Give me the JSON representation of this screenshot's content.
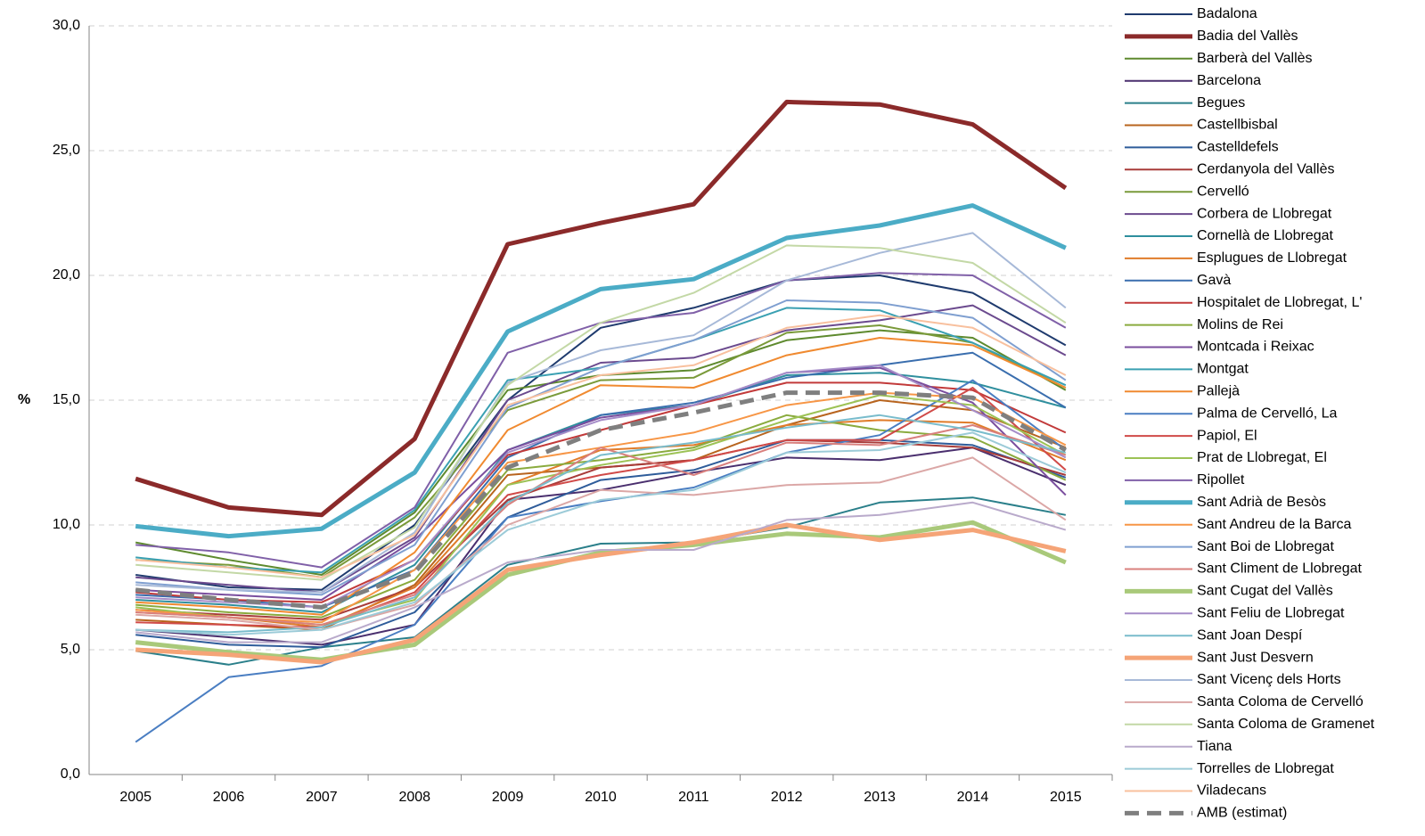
{
  "chart_data": {
    "type": "line",
    "y_label": "%",
    "categories": [
      "2005",
      "2006",
      "2007",
      "2008",
      "2009",
      "2010",
      "2011",
      "2012",
      "2013",
      "2014",
      "2015"
    ],
    "ylim": [
      0,
      30
    ],
    "yticks": [
      {
        "value": 0,
        "label": "0,0"
      },
      {
        "value": 5,
        "label": "5,0"
      },
      {
        "value": 10,
        "label": "10,0"
      },
      {
        "value": 15,
        "label": "15,0"
      },
      {
        "value": 20,
        "label": "20,0"
      },
      {
        "value": 25,
        "label": "25,0"
      },
      {
        "value": 30,
        "label": "30,0"
      }
    ],
    "grid": true,
    "legend": "right",
    "series": [
      {
        "name": "Badalona",
        "color": "#1f3b6e",
        "values": [
          8.0,
          7.5,
          7.4,
          10.0,
          15.0,
          17.9,
          18.7,
          19.8,
          20.0,
          19.3,
          17.2
        ]
      },
      {
        "name": "Badia del Vallès",
        "color": "#8b2a2a",
        "line_width": 5,
        "values": [
          11.85,
          10.7,
          10.4,
          13.45,
          21.25,
          22.1,
          22.85,
          26.95,
          26.85,
          26.05,
          23.5
        ]
      },
      {
        "name": "Barberà del Vallès",
        "color": "#5e8a2e",
        "values": [
          9.3,
          8.6,
          8.0,
          10.5,
          15.4,
          16.0,
          16.2,
          17.4,
          17.8,
          17.5,
          15.4
        ]
      },
      {
        "name": "Barcelona",
        "color": "#4a2f6e",
        "values": [
          5.8,
          5.5,
          5.2,
          6.0,
          11.0,
          11.4,
          12.1,
          12.7,
          12.6,
          13.1,
          11.6
        ]
      },
      {
        "name": "Begues",
        "color": "#2a7f8a",
        "values": [
          4.95,
          4.4,
          5.1,
          5.5,
          8.4,
          9.25,
          9.3,
          9.9,
          10.9,
          11.1,
          10.4
        ]
      },
      {
        "name": "Castellbisbal",
        "color": "#b8641e",
        "values": [
          6.2,
          6.0,
          5.8,
          7.6,
          12.0,
          12.3,
          12.6,
          14.0,
          15.0,
          14.6,
          13.1
        ]
      },
      {
        "name": "Castelldefels",
        "color": "#2e5c9a",
        "values": [
          5.6,
          5.2,
          5.1,
          6.5,
          10.3,
          11.8,
          12.2,
          13.4,
          13.4,
          13.2,
          11.9
        ]
      },
      {
        "name": "Cerdanyola del Vallès",
        "color": "#a83c3a",
        "values": [
          6.6,
          6.4,
          6.2,
          7.5,
          11.0,
          12.3,
          12.6,
          13.4,
          13.3,
          13.1,
          12.0
        ]
      },
      {
        "name": "Cervelló",
        "color": "#7a9a3a",
        "values": [
          8.6,
          8.4,
          7.9,
          10.3,
          14.6,
          15.8,
          15.9,
          17.7,
          18.0,
          17.3,
          15.5
        ]
      },
      {
        "name": "Corbera de Llobregat",
        "color": "#6b4a8e",
        "values": [
          7.9,
          7.6,
          7.3,
          9.5,
          15.0,
          16.5,
          16.7,
          17.8,
          18.2,
          18.8,
          16.8
        ]
      },
      {
        "name": "Cornellà de Llobregat",
        "color": "#2f8f9e",
        "values": [
          7.0,
          6.8,
          6.5,
          8.4,
          13.0,
          14.4,
          14.8,
          16.0,
          16.1,
          15.7,
          14.7
        ]
      },
      {
        "name": "Esplugues de Llobregat",
        "color": "#e07c2a",
        "values": [
          6.5,
          6.3,
          5.9,
          7.5,
          11.6,
          13.0,
          13.2,
          14.0,
          14.2,
          14.1,
          12.6
        ]
      },
      {
        "name": "Gavà",
        "color": "#3a6eae",
        "values": [
          7.2,
          7.0,
          6.7,
          8.2,
          12.7,
          14.4,
          14.9,
          15.9,
          16.4,
          16.9,
          14.7
        ]
      },
      {
        "name": "Hospitalet de Llobregat, L'",
        "color": "#c23a3a",
        "values": [
          7.3,
          7.0,
          6.9,
          8.6,
          12.8,
          13.8,
          14.8,
          15.7,
          15.7,
          15.4,
          13.7
        ]
      },
      {
        "name": "Molins de Rei",
        "color": "#8aab3e",
        "values": [
          6.8,
          6.5,
          6.3,
          7.8,
          12.2,
          12.6,
          13.1,
          14.4,
          13.8,
          13.5,
          11.8
        ]
      },
      {
        "name": "Montcada i Reixac",
        "color": "#7a4e9e",
        "values": [
          7.4,
          7.2,
          7.0,
          9.4,
          13.0,
          14.3,
          14.8,
          16.1,
          16.3,
          14.9,
          11.2
        ]
      },
      {
        "name": "Montgat",
        "color": "#3aa0b2",
        "values": [
          8.7,
          8.3,
          8.1,
          10.6,
          15.8,
          16.3,
          17.4,
          18.7,
          18.6,
          17.3,
          15.6
        ]
      },
      {
        "name": "Pallejà",
        "color": "#f08a30",
        "values": [
          6.9,
          6.7,
          6.4,
          8.9,
          13.8,
          15.6,
          15.5,
          16.8,
          17.5,
          17.2,
          15.5
        ]
      },
      {
        "name": "Palma de Cervelló, La",
        "color": "#4a7ec2",
        "values": [
          1.3,
          3.9,
          4.35,
          6.0,
          10.3,
          10.95,
          11.5,
          12.9,
          13.6,
          15.8,
          13.0
        ]
      },
      {
        "name": "Papiol, El",
        "color": "#d04a48",
        "values": [
          6.1,
          6.0,
          5.9,
          7.3,
          11.2,
          12.0,
          12.6,
          13.4,
          13.4,
          15.5,
          12.2
        ]
      },
      {
        "name": "Prat de Llobregat, El",
        "color": "#9cc255",
        "values": [
          6.7,
          6.3,
          6.0,
          7.0,
          11.6,
          12.4,
          13.0,
          14.2,
          15.2,
          14.8,
          12.8
        ]
      },
      {
        "name": "Ripollet",
        "color": "#8060a8",
        "values": [
          9.2,
          8.9,
          8.3,
          10.7,
          16.9,
          18.1,
          18.5,
          19.8,
          20.1,
          20.0,
          17.9
        ]
      },
      {
        "name": "Sant Adrià de Besòs",
        "color": "#4bacc6",
        "line_width": 5,
        "values": [
          9.95,
          9.55,
          9.85,
          12.1,
          17.75,
          19.45,
          19.85,
          21.5,
          22.0,
          22.8,
          21.1
        ]
      },
      {
        "name": "Sant Andreu de la Barca",
        "color": "#f79646",
        "values": [
          6.6,
          6.3,
          6.1,
          8.2,
          12.5,
          13.1,
          13.7,
          14.8,
          15.3,
          15.1,
          13.2
        ]
      },
      {
        "name": "Sant Boi de Llobregat",
        "color": "#7f9fd0",
        "values": [
          7.7,
          7.4,
          7.2,
          9.2,
          14.7,
          16.3,
          17.4,
          19.0,
          18.9,
          18.3,
          15.8
        ]
      },
      {
        "name": "Sant Climent de Llobregat",
        "color": "#d9807e",
        "values": [
          6.5,
          6.3,
          6.0,
          7.2,
          10.8,
          13.1,
          12.0,
          13.3,
          13.2,
          14.0,
          12.8
        ]
      },
      {
        "name": "Sant Cugat del Vallès",
        "color": "#a9c97a",
        "line_width": 5,
        "values": [
          5.3,
          4.9,
          4.6,
          5.2,
          8.0,
          8.9,
          9.2,
          9.65,
          9.5,
          10.1,
          8.5
        ]
      },
      {
        "name": "Sant Feliu de Llobregat",
        "color": "#a58cc8",
        "values": [
          7.1,
          6.9,
          6.7,
          8.6,
          12.9,
          14.2,
          14.8,
          16.1,
          16.4,
          14.6,
          12.7
        ]
      },
      {
        "name": "Sant Joan Despí",
        "color": "#79bccc",
        "values": [
          5.8,
          5.7,
          5.9,
          7.1,
          10.9,
          12.8,
          13.3,
          13.9,
          14.4,
          13.8,
          12.9
        ]
      },
      {
        "name": "Sant Just Desvern",
        "color": "#f5a477",
        "line_width": 5,
        "values": [
          5.0,
          4.8,
          4.5,
          5.4,
          8.2,
          8.8,
          9.3,
          10.0,
          9.4,
          9.8,
          8.95
        ]
      },
      {
        "name": "Sant Vicenç dels Horts",
        "color": "#a7b9d8",
        "values": [
          7.6,
          7.4,
          7.3,
          9.7,
          15.7,
          17.0,
          17.6,
          19.8,
          20.9,
          21.7,
          18.7
        ]
      },
      {
        "name": "Santa Coloma de Cervelló",
        "color": "#dba7a6",
        "values": [
          6.4,
          6.2,
          5.8,
          6.8,
          10.0,
          11.4,
          11.2,
          11.6,
          11.7,
          12.7,
          10.2
        ]
      },
      {
        "name": "Santa Coloma de Gramenet",
        "color": "#c3d8a6",
        "values": [
          8.4,
          8.1,
          7.8,
          9.9,
          15.6,
          18.1,
          19.3,
          21.2,
          21.1,
          20.5,
          18.1
        ]
      },
      {
        "name": "Tiana",
        "color": "#b9aacb",
        "values": [
          5.7,
          5.3,
          5.3,
          6.7,
          8.5,
          9.0,
          9.0,
          10.2,
          10.4,
          10.9,
          9.8
        ]
      },
      {
        "name": "Torrelles de Llobregat",
        "color": "#9ccbd8",
        "values": [
          5.8,
          5.6,
          5.8,
          6.9,
          9.8,
          11.0,
          11.4,
          12.9,
          13.0,
          13.7,
          12.1
        ]
      },
      {
        "name": "Viladecans",
        "color": "#f8c09e",
        "values": [
          8.6,
          8.3,
          7.9,
          9.6,
          14.8,
          16.0,
          16.4,
          17.9,
          18.4,
          17.9,
          16.0
        ]
      },
      {
        "name": "AMB (estimat)",
        "color": "#7f7f7f",
        "line_width": 5,
        "dash": true,
        "values": [
          7.4,
          7.0,
          6.7,
          8.1,
          12.3,
          13.8,
          14.5,
          15.3,
          15.3,
          15.1,
          13.0
        ]
      }
    ]
  }
}
